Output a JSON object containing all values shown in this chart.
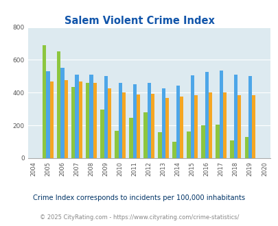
{
  "title": "Salem Violent Crime Index",
  "years": [
    2004,
    2005,
    2006,
    2007,
    2008,
    2009,
    2010,
    2011,
    2012,
    2013,
    2014,
    2015,
    2016,
    2017,
    2018,
    2019,
    2020
  ],
  "salem": [
    null,
    690,
    650,
    435,
    460,
    295,
    168,
    248,
    280,
    160,
    100,
    163,
    202,
    205,
    110,
    128,
    null
  ],
  "missouri": [
    null,
    530,
    550,
    510,
    510,
    500,
    460,
    450,
    460,
    425,
    445,
    505,
    525,
    535,
    510,
    500,
    null
  ],
  "national": [
    null,
    470,
    475,
    468,
    458,
    428,
    402,
    390,
    392,
    368,
    378,
    383,
    400,
    400,
    385,
    383,
    null
  ],
  "salem_color": "#8dc63f",
  "missouri_color": "#4da6e8",
  "national_color": "#f5a623",
  "bg_color": "#ddeaf0",
  "title_color": "#1155aa",
  "ylim": [
    0,
    800
  ],
  "yticks": [
    0,
    200,
    400,
    600,
    800
  ],
  "subtitle": "Crime Index corresponds to incidents per 100,000 inhabitants",
  "footer": "© 2025 CityRating.com - https://www.cityrating.com/crime-statistics/",
  "subtitle_color": "#003366",
  "footer_color": "#888888"
}
